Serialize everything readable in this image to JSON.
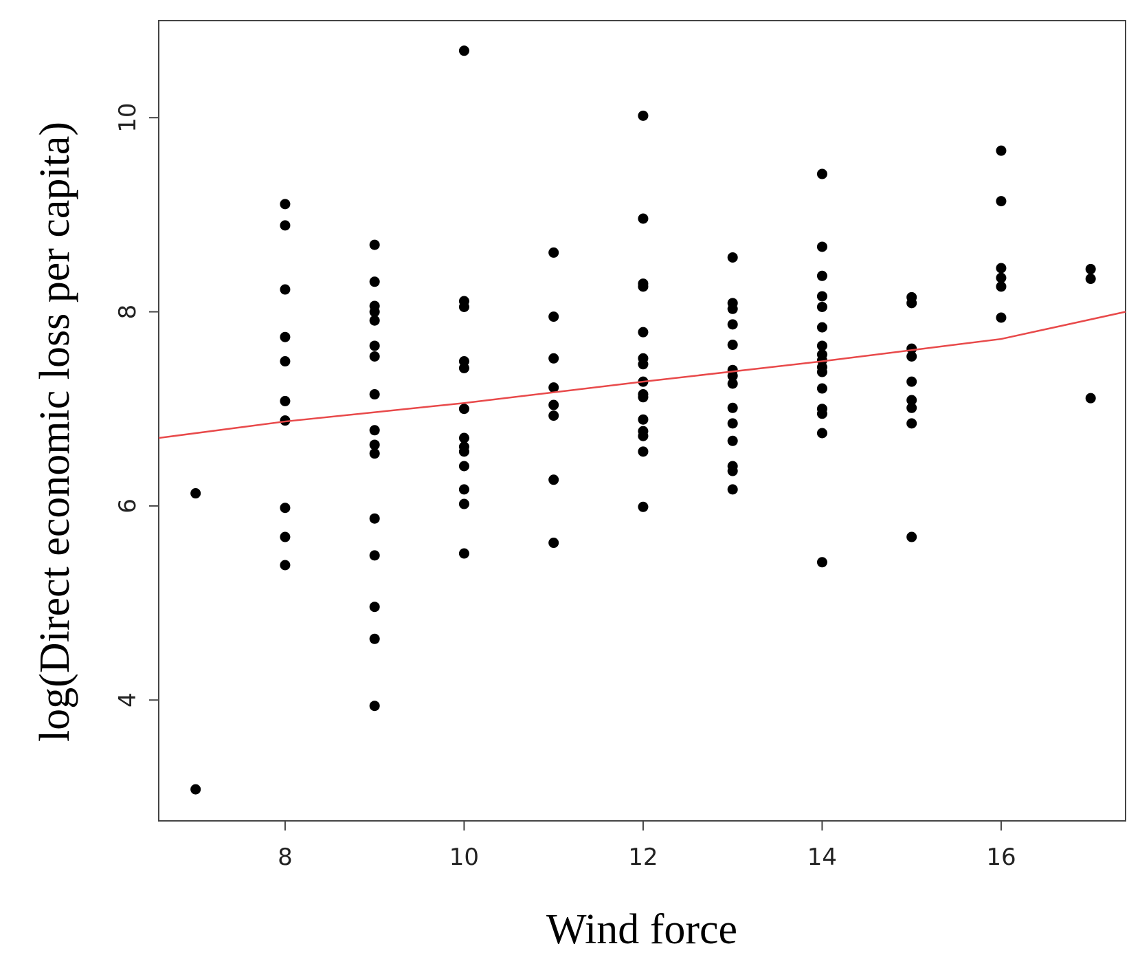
{
  "chart_data": {
    "type": "scatter",
    "xlabel": "Wind force",
    "ylabel": "log(Direct economic loss per capita)",
    "xlim": [
      6.588,
      17.39
    ],
    "ylim": [
      2.755,
      11.0
    ],
    "xticks": [
      8,
      10,
      12,
      14,
      16
    ],
    "yticks": [
      4,
      6,
      8,
      10
    ],
    "color": "#000000",
    "x": [
      7,
      7,
      8,
      8,
      8,
      8,
      8,
      8,
      8,
      8,
      8,
      8,
      9,
      9,
      9,
      9,
      9,
      9,
      9,
      9,
      9,
      9,
      9,
      9,
      9,
      9,
      9,
      9,
      10,
      10,
      10,
      10,
      10,
      10,
      10,
      10,
      10,
      10,
      10,
      10,
      10,
      11,
      11,
      11,
      11,
      11,
      11,
      11,
      11,
      12,
      12,
      12,
      12,
      12,
      12,
      12,
      12,
      12,
      12,
      12,
      12,
      12,
      12,
      12,
      13,
      13,
      13,
      13,
      13,
      13,
      13,
      13,
      13,
      13,
      13,
      13,
      13,
      13,
      14,
      14,
      14,
      14,
      14,
      14,
      14,
      14,
      14,
      14,
      14,
      14,
      14,
      14,
      14,
      14,
      15,
      15,
      15,
      15,
      15,
      15,
      15,
      15,
      15,
      16,
      16,
      16,
      16,
      16,
      16,
      17,
      17,
      17
    ],
    "values": [
      6.13,
      3.08,
      9.11,
      8.89,
      8.23,
      7.74,
      7.49,
      7.08,
      6.88,
      5.98,
      5.68,
      5.39,
      8.69,
      8.31,
      8.06,
      8.0,
      7.91,
      7.65,
      7.54,
      7.15,
      6.78,
      6.63,
      6.54,
      5.87,
      5.49,
      4.96,
      4.63,
      3.94,
      10.69,
      8.11,
      8.05,
      7.49,
      7.42,
      7.0,
      6.7,
      6.61,
      6.56,
      6.41,
      6.17,
      6.02,
      5.51,
      8.61,
      7.95,
      7.52,
      7.22,
      7.04,
      6.93,
      6.27,
      5.62,
      10.02,
      8.96,
      8.29,
      8.26,
      7.79,
      7.52,
      7.46,
      7.28,
      7.15,
      7.12,
      6.89,
      6.77,
      6.72,
      6.56,
      5.99,
      8.56,
      8.09,
      8.03,
      7.87,
      7.66,
      7.4,
      7.34,
      7.26,
      7.01,
      6.85,
      6.67,
      6.41,
      6.36,
      6.17,
      9.42,
      8.67,
      8.37,
      8.16,
      8.05,
      7.84,
      7.65,
      7.56,
      7.5,
      7.43,
      7.38,
      7.21,
      7.0,
      6.95,
      6.75,
      5.42,
      8.15,
      8.09,
      7.62,
      7.54,
      7.28,
      7.09,
      7.01,
      6.85,
      5.68,
      9.66,
      9.14,
      8.45,
      8.35,
      8.26,
      7.94,
      8.44,
      8.34,
      7.11
    ],
    "trend": {
      "color": "#e8494a",
      "x": [
        6.588,
        8,
        10,
        12,
        14,
        16,
        17.39
      ],
      "values": [
        6.7,
        6.87,
        7.06,
        7.28,
        7.49,
        7.72,
        8.0
      ]
    }
  }
}
